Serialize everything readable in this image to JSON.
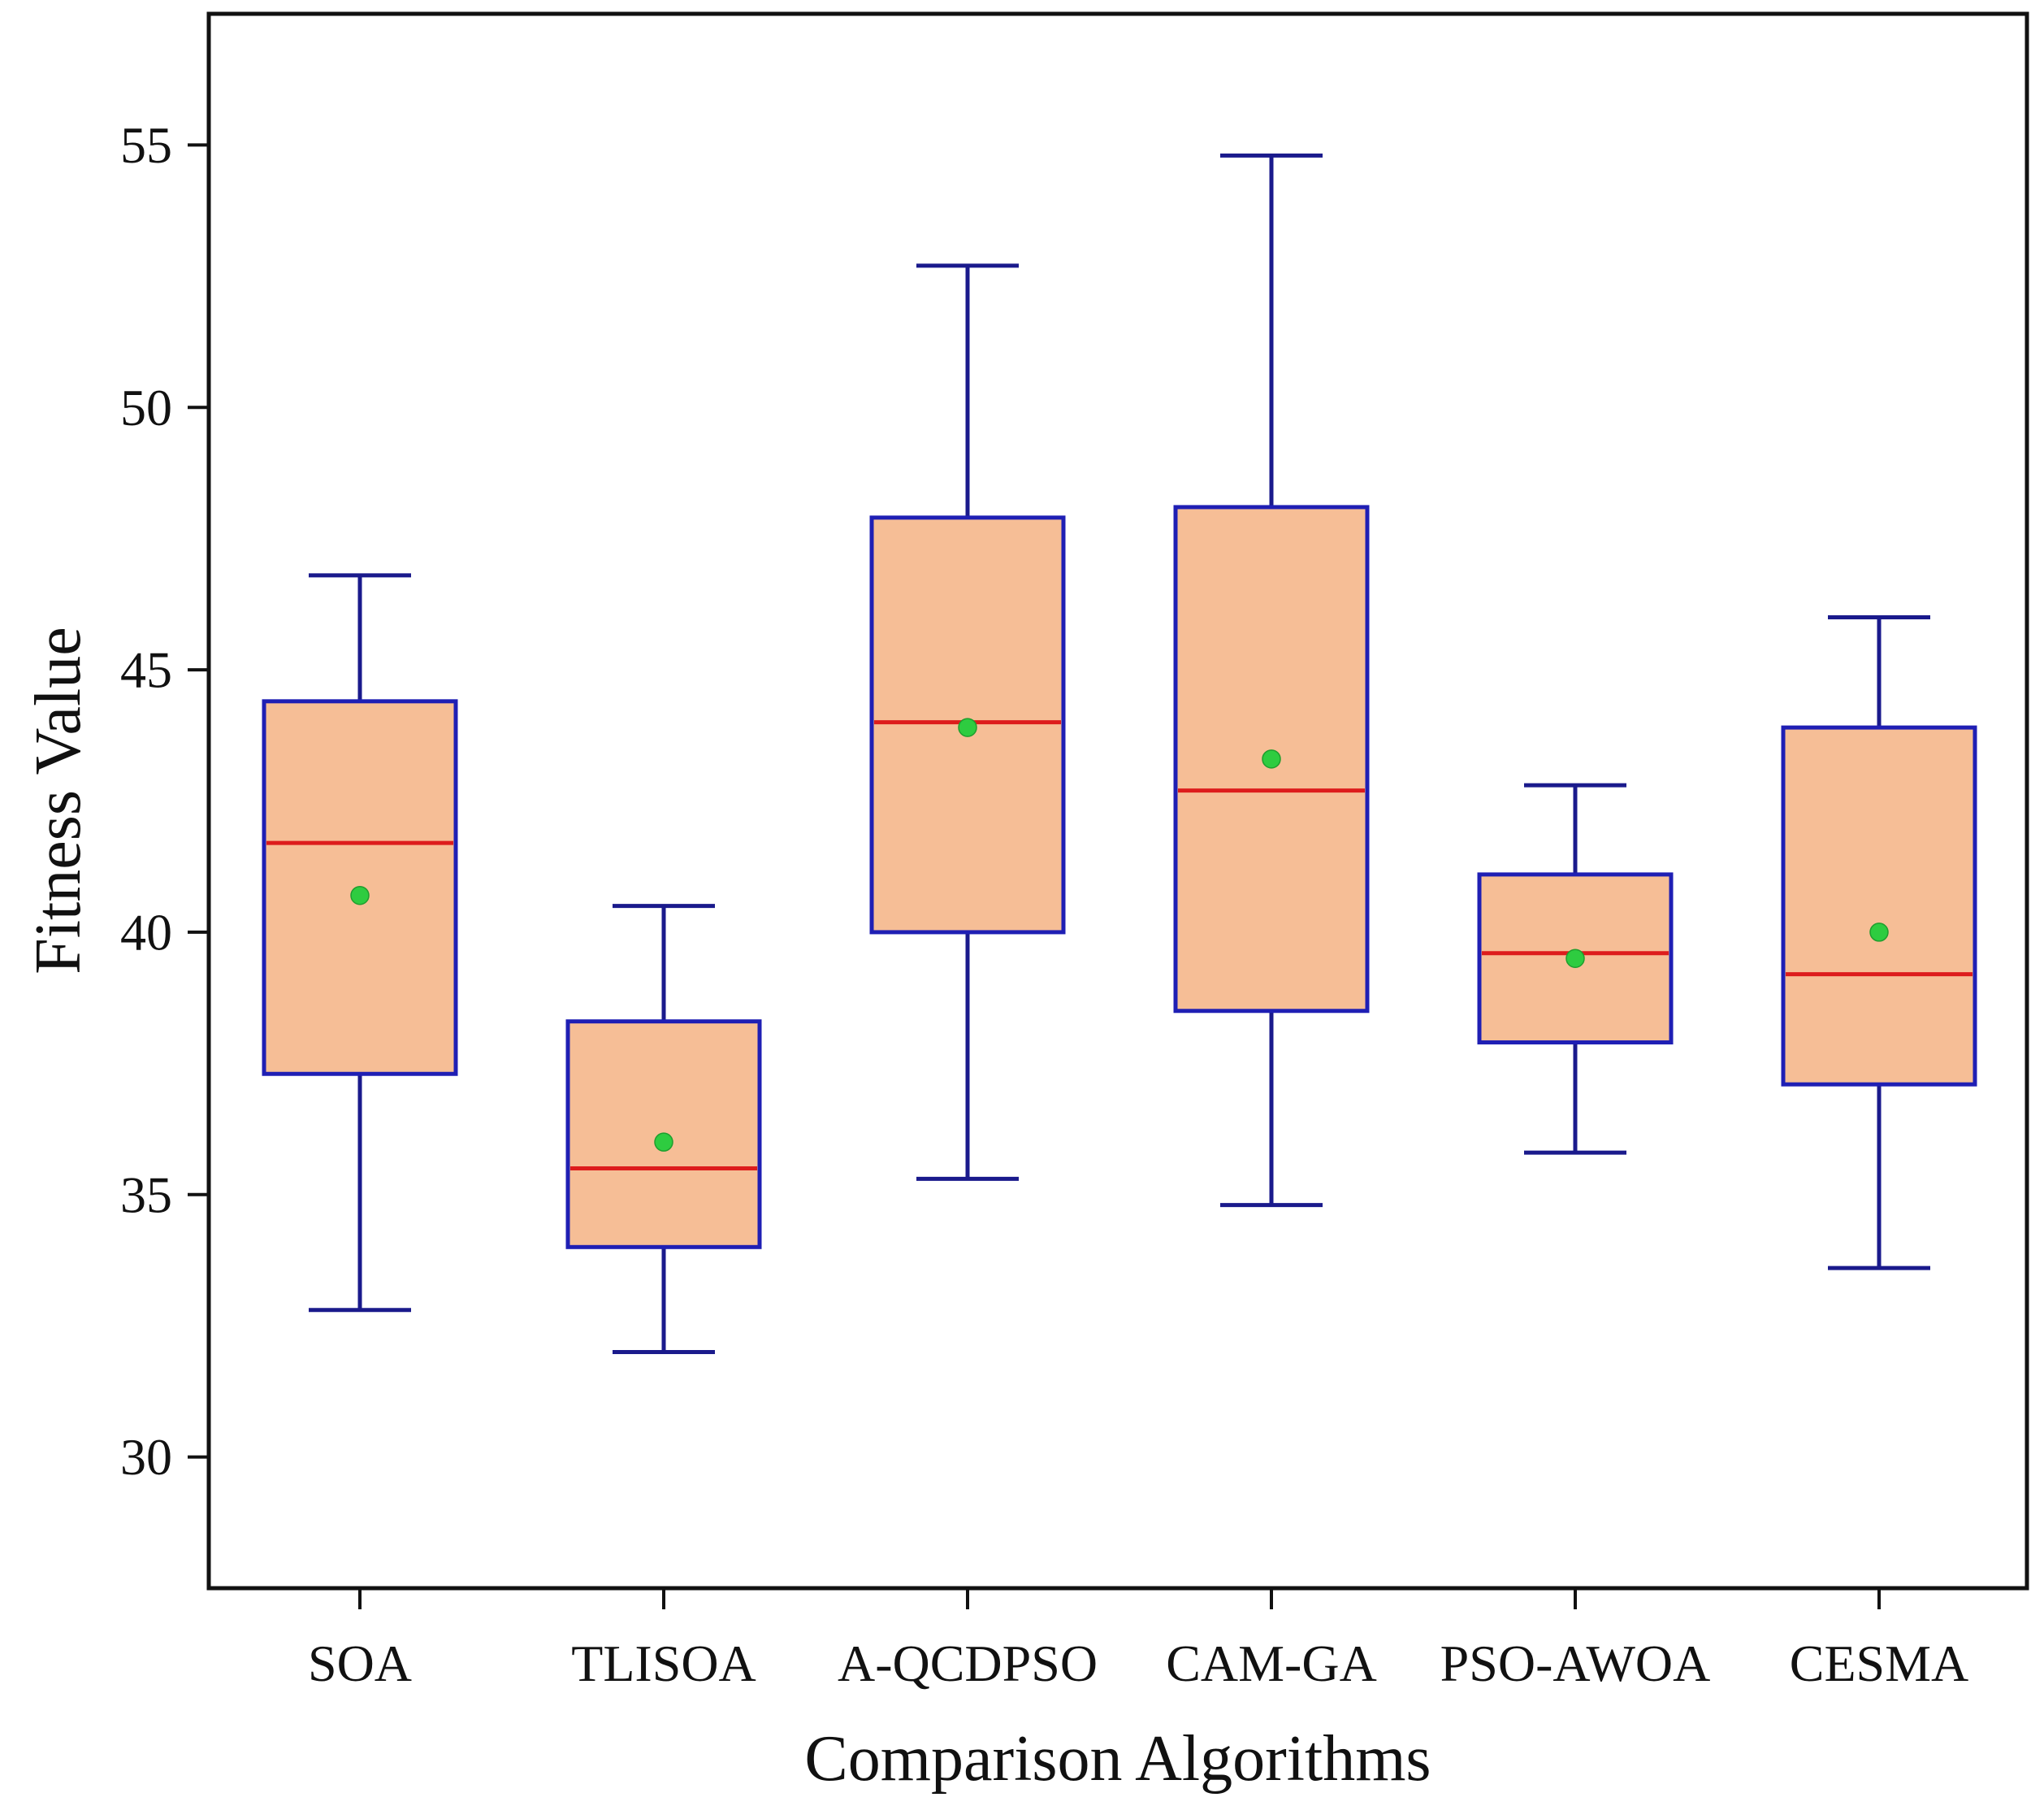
{
  "chart_data": {
    "type": "boxplot",
    "title": "",
    "xlabel": "Comparison Algorithms",
    "ylabel": "Fitness Value",
    "ylim": [
      27.5,
      57.5
    ],
    "yticks": [
      30,
      35,
      40,
      45,
      50,
      55
    ],
    "grid": false,
    "categories": [
      "SOA",
      "TLISOA",
      "A-QCDPSO",
      "CAM-GA",
      "PSO-AWOA",
      "CESMA"
    ],
    "boxes": [
      {
        "name": "SOA",
        "whisker_low": 32.8,
        "q1": 37.3,
        "median": 41.7,
        "q3": 44.4,
        "whisker_high": 46.8,
        "mean": 40.7
      },
      {
        "name": "TLISOA",
        "whisker_low": 32.0,
        "q1": 34.0,
        "median": 35.5,
        "q3": 38.3,
        "whisker_high": 40.5,
        "mean": 36.0
      },
      {
        "name": "A-QCDPSO",
        "whisker_low": 35.3,
        "q1": 40.0,
        "median": 44.0,
        "q3": 47.9,
        "whisker_high": 52.7,
        "mean": 43.9
      },
      {
        "name": "CAM-GA",
        "whisker_low": 34.8,
        "q1": 38.5,
        "median": 42.7,
        "q3": 48.1,
        "whisker_high": 54.8,
        "mean": 43.3
      },
      {
        "name": "PSO-AWOA",
        "whisker_low": 35.8,
        "q1": 37.9,
        "median": 39.6,
        "q3": 41.1,
        "whisker_high": 42.8,
        "mean": 39.5
      },
      {
        "name": "CESMA",
        "whisker_low": 33.6,
        "q1": 37.1,
        "median": 39.2,
        "q3": 43.9,
        "whisker_high": 46.0,
        "mean": 40.0
      }
    ],
    "colors": {
      "box_fill": "#f6be96",
      "box_edge": "#1f1fb4",
      "whisker": "#1a1a8c",
      "median": "#dd1c1c",
      "mean": "#2ecc40",
      "axis": "#111111"
    }
  }
}
